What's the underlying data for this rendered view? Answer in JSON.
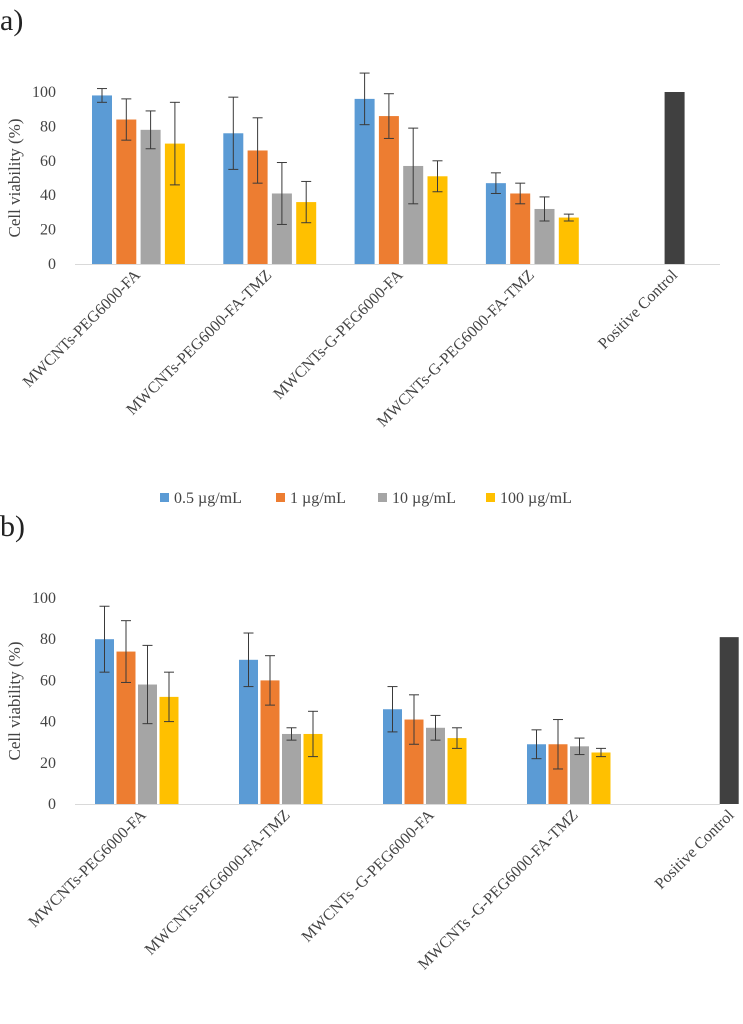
{
  "legend": {
    "items": [
      {
        "label": "0.5 µg/mL",
        "color": "#5B9BD5"
      },
      {
        "label": "1 µg/mL",
        "color": "#ED7D31"
      },
      {
        "label": "10 µg/mL",
        "color": "#A5A5A5"
      },
      {
        "label": "100 µg/mL",
        "color": "#FFC000"
      }
    ]
  },
  "chart_data": [
    {
      "type": "bar",
      "panel_label": "a)",
      "ylabel": "Cell viability (%)",
      "ylim": [
        0,
        100
      ],
      "yticks": [
        0,
        20,
        40,
        60,
        80,
        100
      ],
      "categories": [
        "MWCNTs-PEG6000-FA",
        "MWCNTs-PEG6000-FA-TMZ",
        "MWCNTs-G-PEG6000-FA",
        "MWCNTs-G-PEG6000-FA-TMZ",
        "Positive Control"
      ],
      "series": [
        {
          "name": "0.5 µg/mL",
          "color": "#5B9BD5",
          "values": [
            98,
            76,
            96,
            47,
            null
          ],
          "errors": [
            4,
            21,
            15,
            6,
            null
          ]
        },
        {
          "name": "1 µg/mL",
          "color": "#ED7D31",
          "values": [
            84,
            66,
            86,
            41,
            null
          ],
          "errors": [
            12,
            19,
            13,
            6,
            null
          ]
        },
        {
          "name": "10 µg/mL",
          "color": "#A5A5A5",
          "values": [
            78,
            41,
            57,
            32,
            null
          ],
          "errors": [
            11,
            18,
            22,
            7,
            null
          ]
        },
        {
          "name": "100 µg/mL",
          "color": "#FFC000",
          "values": [
            70,
            36,
            51,
            27,
            null
          ],
          "errors": [
            24,
            12,
            9,
            2,
            null
          ]
        }
      ],
      "control": {
        "value": 100,
        "color": "#404040"
      }
    },
    {
      "type": "bar",
      "panel_label": "b)",
      "ylabel": "Cell viability (%)",
      "ylim": [
        0,
        100
      ],
      "yticks": [
        0,
        20,
        40,
        60,
        80,
        100
      ],
      "categories": [
        "MWCNTs-PEG6000-FA",
        "MWCNTs-PEG6000-FA-TMZ",
        "MWCNTs -G-PEG6000-FA",
        "MWCNTs -G-PEG6000-FA-TMZ",
        "Positive Control"
      ],
      "series": [
        {
          "name": "0.5 µg/mL",
          "color": "#5B9BD5",
          "values": [
            80,
            70,
            46,
            29,
            null
          ],
          "errors": [
            16,
            13,
            11,
            7,
            null
          ]
        },
        {
          "name": "1 µg/mL",
          "color": "#ED7D31",
          "values": [
            74,
            60,
            41,
            29,
            null
          ],
          "errors": [
            15,
            12,
            12,
            12,
            null
          ]
        },
        {
          "name": "10 µg/mL",
          "color": "#A5A5A5",
          "values": [
            58,
            34,
            37,
            28,
            null
          ],
          "errors": [
            19,
            3,
            6,
            4,
            null
          ]
        },
        {
          "name": "100 µg/mL",
          "color": "#FFC000",
          "values": [
            52,
            34,
            32,
            25,
            null
          ],
          "errors": [
            12,
            11,
            5,
            2,
            null
          ]
        }
      ],
      "control": {
        "value": 81,
        "color": "#404040"
      }
    }
  ]
}
